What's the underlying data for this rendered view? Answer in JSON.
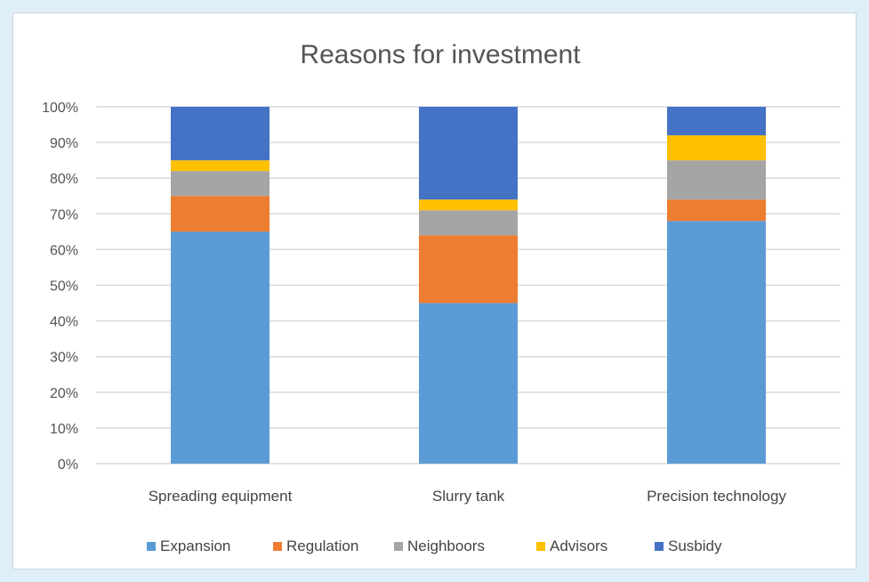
{
  "chart_data": {
    "type": "bar",
    "stacked": true,
    "title": "Reasons for investment",
    "xlabel": "",
    "ylabel": "",
    "ylim": [
      0,
      100
    ],
    "y_ticks": [
      "0%",
      "10%",
      "20%",
      "30%",
      "40%",
      "50%",
      "60%",
      "70%",
      "80%",
      "90%",
      "100%"
    ],
    "grid": true,
    "legend_position": "bottom",
    "categories": [
      "Spreading equipment",
      "Slurry tank",
      "Precision technology"
    ],
    "series": [
      {
        "name": "Expansion",
        "color": "#5b9bd5",
        "values": [
          65,
          45,
          68
        ]
      },
      {
        "name": "Regulation",
        "color": "#ed7d31",
        "values": [
          10,
          19,
          6
        ]
      },
      {
        "name": "Neighboors",
        "color": "#a5a5a5",
        "values": [
          7,
          7,
          11
        ]
      },
      {
        "name": "Advisors",
        "color": "#ffc000",
        "values": [
          3,
          3,
          7
        ]
      },
      {
        "name": "Susbidy",
        "color": "#4472c4",
        "values": [
          15,
          26,
          8
        ]
      }
    ]
  }
}
